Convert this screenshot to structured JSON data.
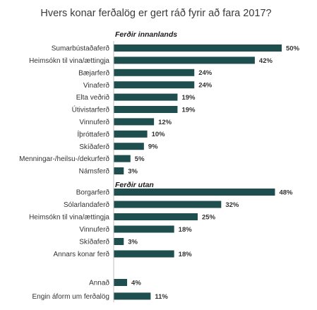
{
  "chart_data": {
    "type": "bar",
    "orientation": "horizontal",
    "title": "Hvers konar ferðalög er gert ráð fyrir að fara 2017?",
    "bar_color": "#1f4e4f",
    "value_suffix": "%",
    "groups": [
      {
        "label": "Ferðir innanlands",
        "categories": [
          "Sumarbústaðaferð",
          "Heimsókn til vina/ættingja",
          "Bæjarferð",
          "Vinaferð",
          "Elta veðrið",
          "Útivistarferð",
          "Vinnuferð",
          "Íþróttaferð",
          "Skíðaferð",
          "Menningar-/heilsu-/dekurferð",
          "Námsferð"
        ],
        "values": [
          50,
          42,
          24,
          24,
          19,
          19,
          12,
          10,
          9,
          5,
          3
        ]
      },
      {
        "label": "Ferðir utan",
        "categories": [
          "Borgarferð",
          "Sólarlandaferð",
          "Heimsókn til vina/ættingja",
          "Vinnuferð",
          "Skíðaferð",
          "Annars konar ferð"
        ],
        "values": [
          48,
          32,
          25,
          18,
          3,
          18
        ]
      },
      {
        "label": "",
        "categories": [
          "Annað",
          "Engin áform um ferðalög"
        ],
        "values": [
          4,
          11
        ]
      }
    ]
  }
}
